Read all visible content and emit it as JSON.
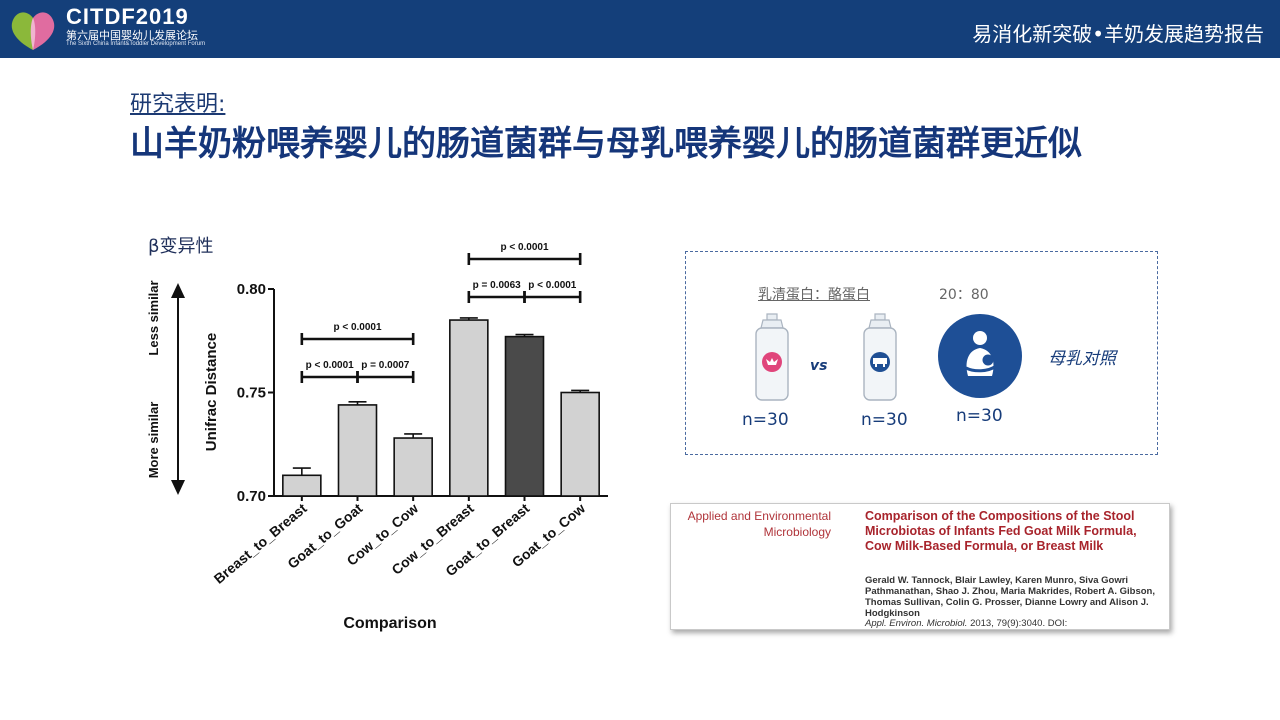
{
  "header": {
    "logo_title": "CITDF2019",
    "logo_subtitle_cn": "第六届中国婴幼儿发展论坛",
    "logo_subtitle_en": "The Sixth China Infant&Toddler Development Forum",
    "report_title": "易消化新突破•羊奶发展趋势报告",
    "color": "#143f7a"
  },
  "slide": {
    "intro": "研究表明:",
    "headline": "山羊奶粉喂养婴儿的肠道菌群与母乳喂养婴儿的肠道菌群更近似",
    "beta_label": "β变异性"
  },
  "chart_data": {
    "type": "bar",
    "xlabel": "Comparison",
    "ylabel": "Unifrac Distance",
    "ylim": [
      0.7,
      0.8
    ],
    "yticks": [
      "0.70",
      "0.75",
      "0.80"
    ],
    "arrow_top_label": "Less similar",
    "arrow_bottom_label": "More similar",
    "categories": [
      "Breast_to_Breast",
      "Goat_to_Goat",
      "Cow_to_Cow",
      "Cow_to_Breast",
      "Goat_to_Breast",
      "Goat_to_Cow"
    ],
    "values": [
      0.71,
      0.744,
      0.728,
      0.785,
      0.777,
      0.75
    ],
    "errors": [
      0.0035,
      0.0015,
      0.002,
      0.001,
      0.001,
      0.001
    ],
    "bar_colors": [
      "#d2d2d2",
      "#d2d2d2",
      "#d2d2d2",
      "#d2d2d2",
      "#4a4a4a",
      "#d2d2d2"
    ],
    "brackets": [
      {
        "from": 1,
        "to": 2,
        "label": "p < 0.0001",
        "level": 0
      },
      {
        "from": 2,
        "to": 3,
        "label": "p = 0.0007",
        "level": 0
      },
      {
        "from": 1,
        "to": 3,
        "label": "p < 0.0001",
        "level": 1
      },
      {
        "from": 4,
        "to": 5,
        "label": "p = 0.0063",
        "level": 0
      },
      {
        "from": 5,
        "to": 6,
        "label": "p < 0.0001",
        "level": 0
      },
      {
        "from": 4,
        "to": 6,
        "label": "p < 0.0001",
        "level": 1
      }
    ]
  },
  "comparison_box": {
    "ratio_label": "乳清蛋白：酪蛋白",
    "ratio_value": "20：80",
    "vs": "vs",
    "reference_label": "母乳对照",
    "groups": [
      {
        "n": "n=30",
        "icon": "goat-milk-bottle-icon",
        "accent": "#e0457b"
      },
      {
        "n": "n=30",
        "icon": "cow-milk-bottle-icon",
        "accent": "#1f4f94"
      },
      {
        "n": "n=30",
        "icon": "breastfeeding-icon",
        "accent": "#1e4f96"
      }
    ]
  },
  "citation": {
    "journal": "Applied and Environmental Microbiology",
    "title": "Comparison of the Compositions of the Stool Microbiotas of Infants Fed Goat Milk Formula, Cow Milk-Based Formula, or Breast Milk",
    "authors": "Gerald W. Tannock, Blair Lawley, Karen Munro, Siva Gowri Pathmanathan, Shao J. Zhou, Maria Makrides, Robert A. Gibson, Thomas Sullivan, Colin G. Prosser, Dianne Lowry and Alison J. Hodgkinson",
    "journal_abbrev": "Appl. Environ. Microbiol.",
    "ref_details": " 2013, 79(9):3040. DOI:"
  }
}
